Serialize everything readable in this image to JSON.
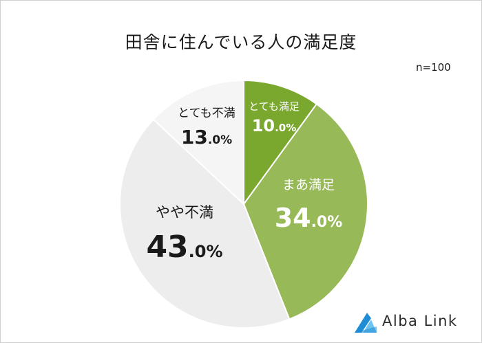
{
  "title": "田舎に住んでいる人の満足度",
  "sample_size": "n=100",
  "brand": "Alba Link",
  "colors": {
    "very_satisfied": "#7aa82f",
    "somewhat_satisfied": "#97b957",
    "somewhat_dissatisfied": "#ededed",
    "very_dissatisfied": "#f5f5f5",
    "separator": "#ffffff",
    "logo_blue": "#1f8dd6",
    "logo_light": "#6ec3ee"
  },
  "chart_data": {
    "type": "pie",
    "title": "田舎に住んでいる人の満足度",
    "unit": "%",
    "sample": "n=100",
    "slices": [
      {
        "label": "とても満足",
        "value": 10.0,
        "int": "10",
        "dec": ".0%"
      },
      {
        "label": "まあ満足",
        "value": 34.0,
        "int": "34",
        "dec": ".0%"
      },
      {
        "label": "やや不満",
        "value": 43.0,
        "int": "43",
        "dec": ".0%"
      },
      {
        "label": "とても不満",
        "value": 13.0,
        "int": "13",
        "dec": ".0%"
      }
    ]
  }
}
